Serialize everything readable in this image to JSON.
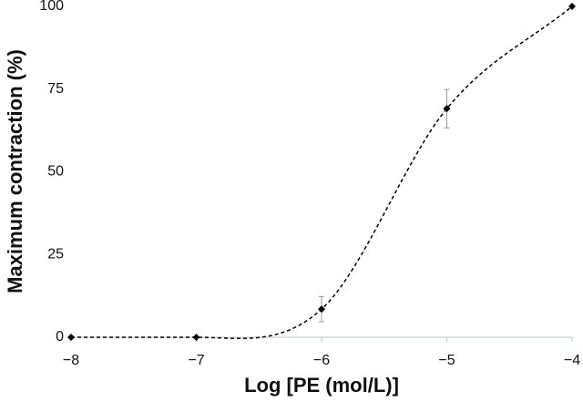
{
  "chart_data": {
    "type": "line",
    "x_label": "Log [PE (mol/L)]",
    "y_label": "Maximum contraction (%)",
    "x": [
      -8,
      -7,
      -6,
      -5,
      -4
    ],
    "series": [
      {
        "color": "#000000",
        "values": [
          0,
          0,
          8.5,
          69.1,
          100
        ],
        "errors": [
          null,
          null,
          3.8,
          5.8,
          null
        ]
      }
    ],
    "xlim": [
      -8,
      -4
    ],
    "xticks": [
      {
        "value": -8,
        "label": "−8"
      },
      {
        "value": -7,
        "label": "−7"
      },
      {
        "value": -6,
        "label": "−6"
      },
      {
        "value": -5,
        "label": "−5"
      },
      {
        "value": -4,
        "label": "−4"
      }
    ],
    "ylim": [
      0,
      100
    ],
    "yticks": [
      0,
      25,
      50,
      75,
      100
    ]
  }
}
